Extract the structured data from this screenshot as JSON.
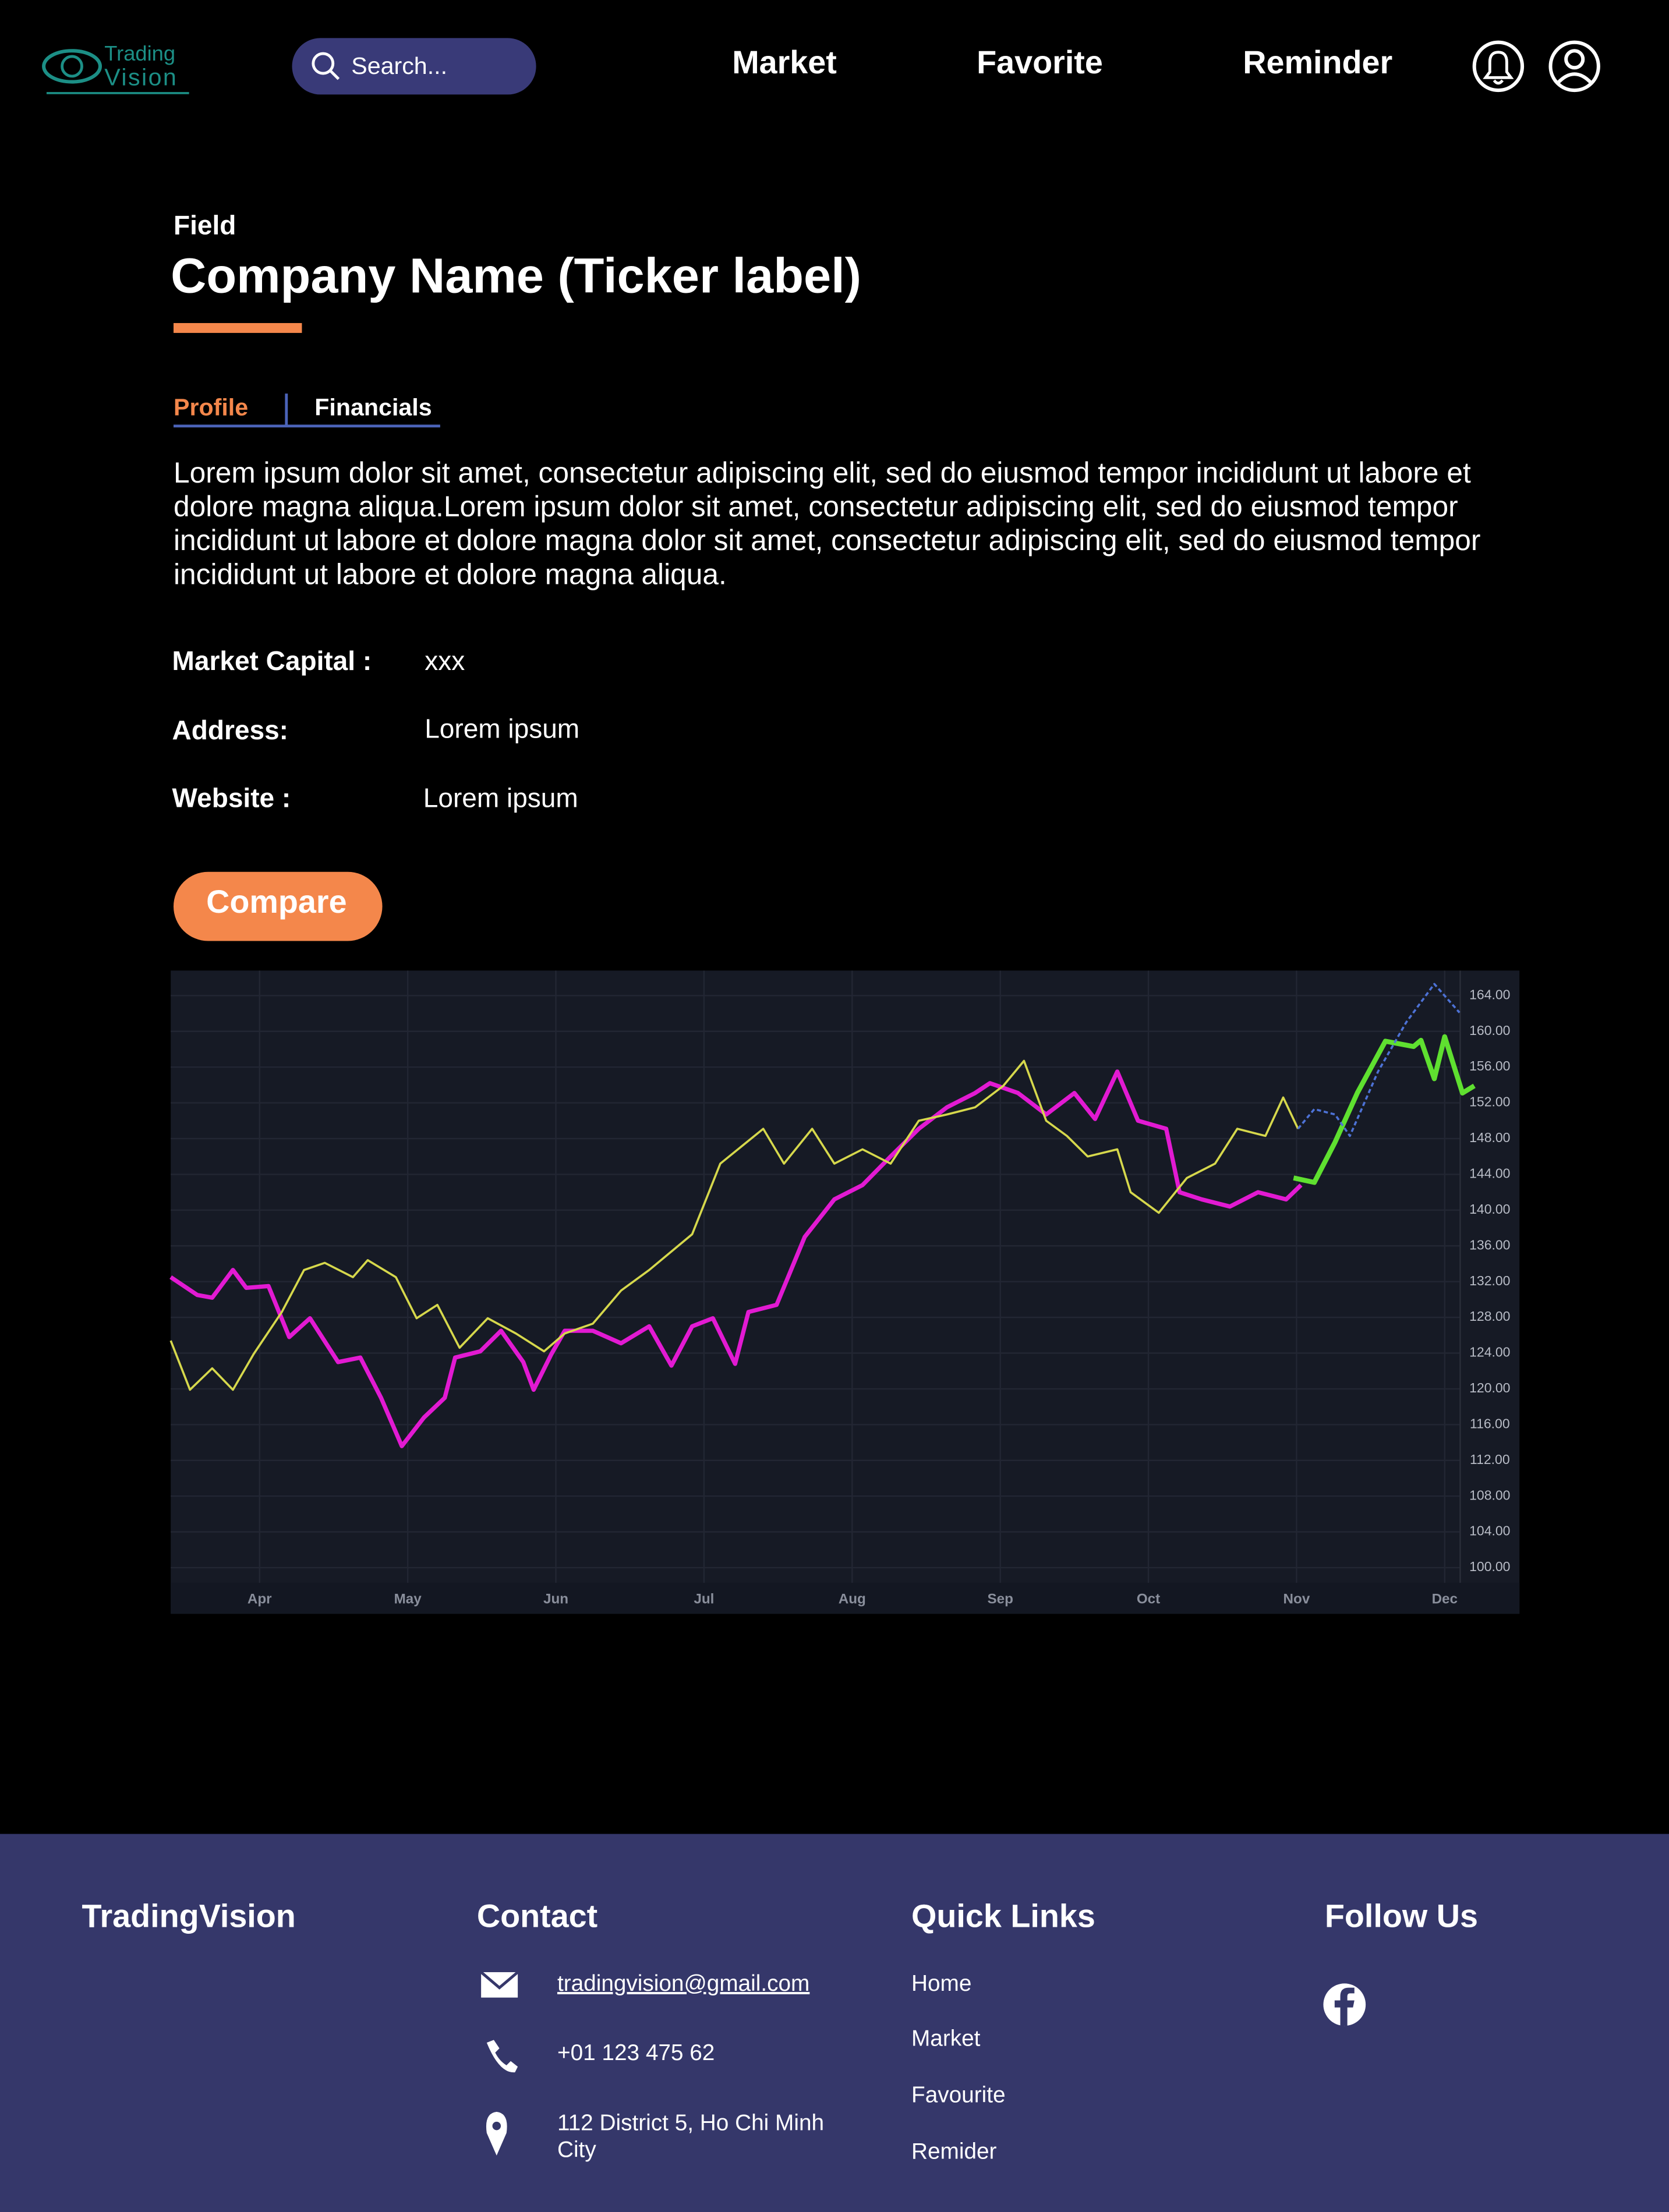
{
  "header": {
    "logo": {
      "line1": "Trading",
      "line2": "Vision"
    },
    "search_placeholder": "Search...",
    "nav": [
      "Market",
      "Favorite",
      "Reminder"
    ]
  },
  "company": {
    "field": "Field",
    "name": "Company Name (Ticker label)"
  },
  "tabs": {
    "items": [
      "Profile",
      "Financials"
    ],
    "active": 0
  },
  "description": "Lorem ipsum dolor sit amet, consectetur adipiscing elit, sed do eiusmod tempor incididunt ut labore et dolore magna aliqua.Lorem ipsum dolor sit amet, consectetur adipiscing elit, sed do eiusmod tempor incididunt ut labore et dolore magna dolor sit amet, consectetur adipiscing elit, sed do eiusmod tempor incididunt ut labore et dolore magna aliqua.",
  "details": [
    {
      "label": "Market Capital :",
      "value": "xxx"
    },
    {
      "label": "Address:",
      "value": "Lorem ipsum"
    },
    {
      "label": "Website :",
      "value": "Lorem ipsum"
    }
  ],
  "button": "Compare",
  "chart_data": {
    "type": "line",
    "xlim": [
      0.4,
      9.2
    ],
    "xticks": [
      {
        "value": 1,
        "label": "Apr"
      },
      {
        "value": 2,
        "label": "May"
      },
      {
        "value": 3,
        "label": "Jun"
      },
      {
        "value": 4,
        "label": "Jul"
      },
      {
        "value": 5,
        "label": "Aug"
      },
      {
        "value": 6,
        "label": "Sep"
      },
      {
        "value": 7,
        "label": "Oct"
      },
      {
        "value": 8,
        "label": "Nov"
      },
      {
        "value": 9,
        "label": "Dec"
      }
    ],
    "ylim": [
      98.3,
      166.8
    ],
    "yticks": [
      {
        "value": 164,
        "label": "164.00"
      },
      {
        "value": 160,
        "label": "160.00"
      },
      {
        "value": 156,
        "label": "156.00"
      },
      {
        "value": 152,
        "label": "152.00"
      },
      {
        "value": 148,
        "label": "148.00"
      },
      {
        "value": 144,
        "label": "144.00"
      },
      {
        "value": 140,
        "label": "140.00"
      },
      {
        "value": 136,
        "label": "136.00"
      },
      {
        "value": 132,
        "label": "132.00"
      },
      {
        "value": 128,
        "label": "128.00"
      },
      {
        "value": 124,
        "label": "124.00"
      },
      {
        "value": 120,
        "label": "120.00"
      },
      {
        "value": 116,
        "label": "116.00"
      },
      {
        "value": 112,
        "label": "112.00"
      },
      {
        "value": 108,
        "label": "108.00"
      },
      {
        "value": 104,
        "label": "104.00"
      },
      {
        "value": 100,
        "label": "100.00"
      }
    ],
    "grid": true,
    "series": [
      {
        "color": "#e21ad2",
        "width": 3,
        "x": [
          0.4,
          0.58,
          0.68,
          0.82,
          0.91,
          1.06,
          1.2,
          1.34,
          1.53,
          1.68,
          1.82,
          1.96,
          2.11,
          2.25,
          2.32,
          2.49,
          2.63,
          2.78,
          2.85,
          2.97,
          3.06,
          3.25,
          3.44,
          3.63,
          3.78,
          3.92,
          4.06,
          4.21,
          4.3,
          4.49,
          4.68,
          4.88,
          5.07,
          5.26,
          5.45,
          5.64,
          5.83,
          5.93,
          6.12,
          6.31,
          6.5,
          6.64,
          6.79,
          6.93,
          7.12,
          7.21,
          7.36,
          7.55,
          7.74,
          7.93,
          8.03
        ],
        "values": [
          132.5,
          130.5,
          130.2,
          133.3,
          131.3,
          131.5,
          125.8,
          127.9,
          123,
          123.5,
          119,
          113.6,
          116.8,
          119,
          123.5,
          124.2,
          126.5,
          123,
          119.9,
          123.9,
          126.5,
          126.5,
          125.1,
          127,
          122.6,
          127,
          127.9,
          122.8,
          128.6,
          129.4,
          137,
          141.2,
          142.8,
          146,
          149.1,
          151.5,
          153.1,
          154.2,
          153.1,
          150.7,
          153.1,
          150.2,
          155.5,
          150,
          149.1,
          142,
          141.2,
          140.4,
          142,
          141.2,
          142.8
        ]
      },
      {
        "color": "#d6d84c",
        "width": 1.5,
        "x": [
          0.4,
          0.53,
          0.68,
          0.82,
          0.96,
          1.15,
          1.3,
          1.44,
          1.63,
          1.73,
          1.92,
          2.06,
          2.2,
          2.35,
          2.54,
          2.73,
          2.92,
          3.06,
          3.25,
          3.44,
          3.63,
          3.92,
          4.11,
          4.4,
          4.54,
          4.73,
          4.88,
          5.07,
          5.26,
          5.45,
          5.64,
          5.83,
          6.02,
          6.16,
          6.31,
          6.45,
          6.59,
          6.79,
          6.88,
          7.07,
          7.26,
          7.45,
          7.6,
          7.79,
          7.91,
          8.01
        ],
        "values": [
          125.4,
          119.9,
          122.3,
          119.9,
          123.9,
          128.6,
          133.3,
          134.1,
          132.5,
          134.4,
          132.5,
          127.9,
          129.4,
          124.6,
          127.9,
          126.2,
          124.2,
          126.2,
          127.3,
          131,
          133.3,
          137.3,
          145.2,
          149.1,
          145.2,
          149.1,
          145.2,
          146.8,
          145.2,
          150,
          150.7,
          151.5,
          153.9,
          156.7,
          150,
          148.3,
          146,
          146.8,
          142,
          139.7,
          143.6,
          145.2,
          149.1,
          148.3,
          152.6,
          149.1
        ]
      },
      {
        "color": "#5fe030",
        "width": 3.5,
        "x": [
          7.98,
          8.12,
          8.26,
          8.41,
          8.6,
          8.79,
          8.84,
          8.93,
          9.0,
          9.12,
          9.2
        ],
        "values": [
          143.6,
          143.1,
          147.6,
          153.1,
          158.9,
          158.3,
          159.0,
          154.7,
          159.4,
          153.1,
          153.9
        ]
      },
      {
        "color": "#4d72d6",
        "width": 1.5,
        "dashed": true,
        "x": [
          8.01,
          8.12,
          8.26,
          8.36,
          8.55,
          8.74,
          8.93,
          9.1
        ],
        "values": [
          149.1,
          151.3,
          150.7,
          148.3,
          155.5,
          161,
          165.3,
          162.1
        ]
      }
    ]
  },
  "footer": {
    "brand": "TradingVision",
    "contact": {
      "title": "Contact",
      "email": "tradingvision@gmail.com",
      "phone": "+01 123 475 62",
      "address": "112 District 5, Ho Chi Minh City"
    },
    "quick_links": {
      "title": "Quick Links",
      "links": [
        "Home",
        "Market",
        "Favourite",
        "Remider"
      ]
    },
    "follow": {
      "title": "Follow Us"
    }
  }
}
